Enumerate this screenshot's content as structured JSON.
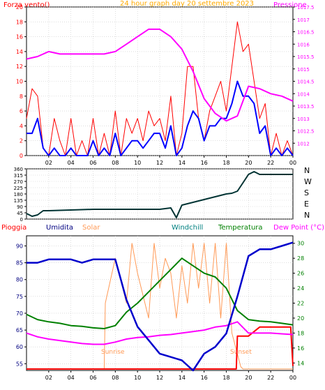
{
  "colors": {
    "bg": "#ffffff",
    "wind": "#ff0000",
    "gust": "#ff0000",
    "speed": "#0000ff",
    "pressure": "#ff00ff",
    "title": "#ffaa00",
    "direction": "#003333",
    "rain": "#ff0000",
    "humidity": "#0000cc",
    "solar": "#ff9955",
    "windchill": "#008080",
    "temperature": "#008000",
    "dewpoint": "#ff00ff",
    "navy": "#000080"
  },
  "panel1": {
    "left_label": "Forza vento()",
    "title": "24 hour graph day  20 settembre 2023",
    "right_label": "Pressione"
  },
  "panel2": {
    "compass": [
      "N",
      "W",
      "S",
      "E",
      "N"
    ]
  },
  "panel3": {
    "legend": [
      "Pioggia",
      "Umidita",
      "Solar",
      "Windchill",
      "Temperatura",
      "Dew Point (°C)"
    ],
    "sunrise": "Sunrise",
    "sunset": "Sunset"
  },
  "chart_data": [
    {
      "type": "line",
      "title": "24 hour graph day  20 settembre 2023",
      "x_ticks": [
        "02",
        "04",
        "06",
        "08",
        "10",
        "12",
        "14",
        "16",
        "18",
        "20",
        "22",
        "00"
      ],
      "xlim": [
        0,
        24
      ],
      "y_left": {
        "label": "Forza vento()",
        "ylim": [
          0,
          20
        ],
        "ticks": [
          0,
          2,
          4,
          6,
          8,
          10,
          12,
          14,
          16,
          18,
          20
        ]
      },
      "y_right": {
        "label": "Pressione",
        "ylim": [
          1011.5,
          1017.5
        ],
        "ticks": [
          1012,
          1012.5,
          1013,
          1013.5,
          1014,
          1014.5,
          1015,
          1015.5,
          1016,
          1016.5,
          1017,
          1017.5
        ]
      },
      "series": [
        {
          "axis": "left",
          "x": [
            0,
            0.5,
            1,
            1.5,
            2,
            2.5,
            3,
            3.5,
            4,
            4.5,
            5,
            5.5,
            6,
            6.5,
            7,
            7.5,
            8,
            8.5,
            9,
            9.5,
            10,
            10.5,
            11,
            11.5,
            12,
            12.5,
            13,
            13.5,
            14,
            14.5,
            15,
            15.5,
            16,
            16.5,
            17,
            17.5,
            18,
            18.5,
            19,
            19.5,
            20,
            20.5,
            21,
            21.5,
            22,
            22.5,
            23,
            23.5,
            24
          ],
          "y": [
            5,
            9,
            8,
            1,
            0,
            5,
            2,
            0,
            5,
            0,
            2,
            0,
            5,
            0,
            3,
            0,
            6,
            0,
            5,
            3,
            5,
            2,
            6,
            4,
            5,
            2,
            8,
            0,
            3,
            12,
            12,
            5,
            2,
            6,
            8,
            10,
            6,
            12,
            18,
            14,
            15,
            10,
            5,
            7,
            0,
            3,
            0,
            2,
            0
          ]
        },
        {
          "axis": "left",
          "x": [
            0,
            0.5,
            1,
            1.5,
            2,
            2.5,
            3,
            3.5,
            4,
            4.5,
            5,
            5.5,
            6,
            6.5,
            7,
            7.5,
            8,
            8.5,
            9,
            9.5,
            10,
            10.5,
            11,
            11.5,
            12,
            12.5,
            13,
            13.5,
            14,
            14.5,
            15,
            15.5,
            16,
            16.5,
            17,
            17.5,
            18,
            18.5,
            19,
            19.5,
            20,
            20.5,
            21,
            21.5,
            22,
            22.5,
            23,
            23.5,
            24
          ],
          "y": [
            3,
            3,
            5,
            1,
            0,
            1,
            0,
            0,
            1,
            0,
            0,
            0,
            2,
            0,
            1,
            0,
            3,
            0,
            1,
            2,
            2,
            1,
            2,
            3,
            3,
            1,
            4,
            0,
            1,
            4,
            6,
            5,
            2,
            4,
            4,
            5,
            5,
            7,
            10,
            8,
            8,
            7,
            3,
            4,
            0,
            1,
            0,
            1,
            0
          ]
        },
        {
          "axis": "right",
          "x": [
            0,
            1,
            2,
            3,
            4,
            5,
            6,
            7,
            8,
            9,
            10,
            11,
            12,
            13,
            14,
            15,
            16,
            17,
            18,
            19,
            20,
            21,
            22,
            23,
            24
          ],
          "y": [
            1015.4,
            1015.5,
            1015.7,
            1015.6,
            1015.6,
            1015.6,
            1015.6,
            1015.6,
            1015.7,
            1016.0,
            1016.3,
            1016.6,
            1016.6,
            1016.3,
            1015.8,
            1014.9,
            1013.8,
            1013.2,
            1012.9,
            1013.1,
            1014.3,
            1014.2,
            1014.0,
            1013.9,
            1013.7
          ]
        }
      ]
    },
    {
      "type": "line",
      "ylim": [
        0,
        360
      ],
      "y_ticks": [
        0,
        45,
        90,
        135,
        180,
        225,
        270,
        315,
        360
      ],
      "x_ticks": [
        "02",
        "04",
        "06",
        "08",
        "10",
        "12",
        "14",
        "16",
        "18",
        "20",
        "22",
        "00"
      ],
      "series": [
        {
          "x": [
            0,
            0.5,
            1,
            1.5,
            2,
            4,
            6,
            8,
            10,
            12,
            13,
            13.5,
            14,
            15,
            16,
            17,
            18,
            18.5,
            19,
            19.5,
            20,
            20.5,
            21,
            22,
            23,
            24
          ],
          "y": [
            40,
            20,
            30,
            60,
            60,
            65,
            70,
            70,
            70,
            70,
            80,
            10,
            100,
            120,
            140,
            160,
            180,
            185,
            200,
            260,
            320,
            340,
            320,
            320,
            320,
            320
          ]
        }
      ]
    },
    {
      "type": "line",
      "xlim": [
        0,
        24
      ],
      "x_ticks": [
        "02",
        "04",
        "06",
        "08",
        "10",
        "12",
        "14",
        "16",
        "18",
        "20",
        "22",
        "00"
      ],
      "y_left": {
        "ylim": [
          53,
          93
        ],
        "ticks": [
          55,
          60,
          65,
          70,
          75,
          80,
          85,
          90
        ]
      },
      "y_right": {
        "label": "Dew Point (°C)",
        "ylim": [
          13,
          31
        ],
        "ticks": [
          14,
          16,
          18,
          20,
          22,
          24,
          26,
          28,
          30
        ]
      },
      "series": [
        {
          "name": "Umidita",
          "axis": "left",
          "x": [
            0,
            1,
            2,
            3,
            4,
            5,
            6,
            7,
            8,
            8.5,
            9,
            10,
            11,
            12,
            13,
            14,
            15,
            16,
            17,
            18,
            19,
            20,
            21,
            22,
            23,
            24
          ],
          "y": [
            85,
            85,
            86,
            86,
            86,
            85,
            86,
            86,
            86,
            80,
            74,
            66,
            62,
            58,
            57,
            56,
            53,
            58,
            60,
            64,
            75,
            87,
            89,
            89,
            90,
            91
          ]
        },
        {
          "name": "Temperatura",
          "axis": "right",
          "x": [
            0,
            1,
            2,
            3,
            4,
            5,
            6,
            7,
            8,
            9,
            10,
            11,
            12,
            13,
            14,
            15,
            16,
            17,
            18,
            19,
            20,
            21,
            22,
            23,
            24
          ],
          "y": [
            20.5,
            19.8,
            19.5,
            19.3,
            19.0,
            18.9,
            18.7,
            18.6,
            19.0,
            20.8,
            22.0,
            23.5,
            25.0,
            26.5,
            28.0,
            27.0,
            26.0,
            25.5,
            24.0,
            21.0,
            19.8,
            19.6,
            19.5,
            19.3,
            19.1
          ]
        },
        {
          "name": "Dew Point (°C)",
          "axis": "right",
          "x": [
            0,
            1,
            2,
            3,
            4,
            5,
            6,
            7,
            8,
            9,
            10,
            11,
            12,
            13,
            14,
            15,
            16,
            17,
            18,
            19,
            20,
            21,
            22,
            23,
            24
          ],
          "y": [
            18.0,
            17.5,
            17.2,
            17.0,
            16.8,
            16.6,
            16.5,
            16.5,
            16.8,
            17.2,
            17.4,
            17.5,
            17.7,
            17.8,
            18.0,
            18.2,
            18.4,
            18.8,
            19.0,
            19.5,
            18.0,
            18.0,
            18.0,
            17.9,
            17.8
          ]
        },
        {
          "name": "Pioggia",
          "axis": "right",
          "x": [
            0,
            18.9,
            19.0,
            20.0,
            21.0,
            23.8,
            24
          ],
          "y": [
            13.2,
            13.2,
            17.6,
            17.6,
            18.8,
            18.8,
            13.6
          ]
        },
        {
          "name": "Solar",
          "axis": "right",
          "x": [
            0,
            7,
            7.1,
            8,
            9,
            9.5,
            10,
            11,
            11.5,
            12,
            12.5,
            13,
            13.5,
            14,
            14.5,
            15,
            15.5,
            16,
            16.5,
            17,
            17.5,
            18,
            18.5,
            19.3,
            19.5,
            24
          ],
          "y": [
            13.2,
            13.2,
            22,
            28,
            22,
            30,
            26,
            20,
            30,
            24,
            28,
            26,
            20,
            27,
            22,
            30,
            24,
            30,
            22,
            30,
            20,
            30,
            18,
            13.5,
            13.2,
            13.2
          ]
        }
      ]
    }
  ]
}
